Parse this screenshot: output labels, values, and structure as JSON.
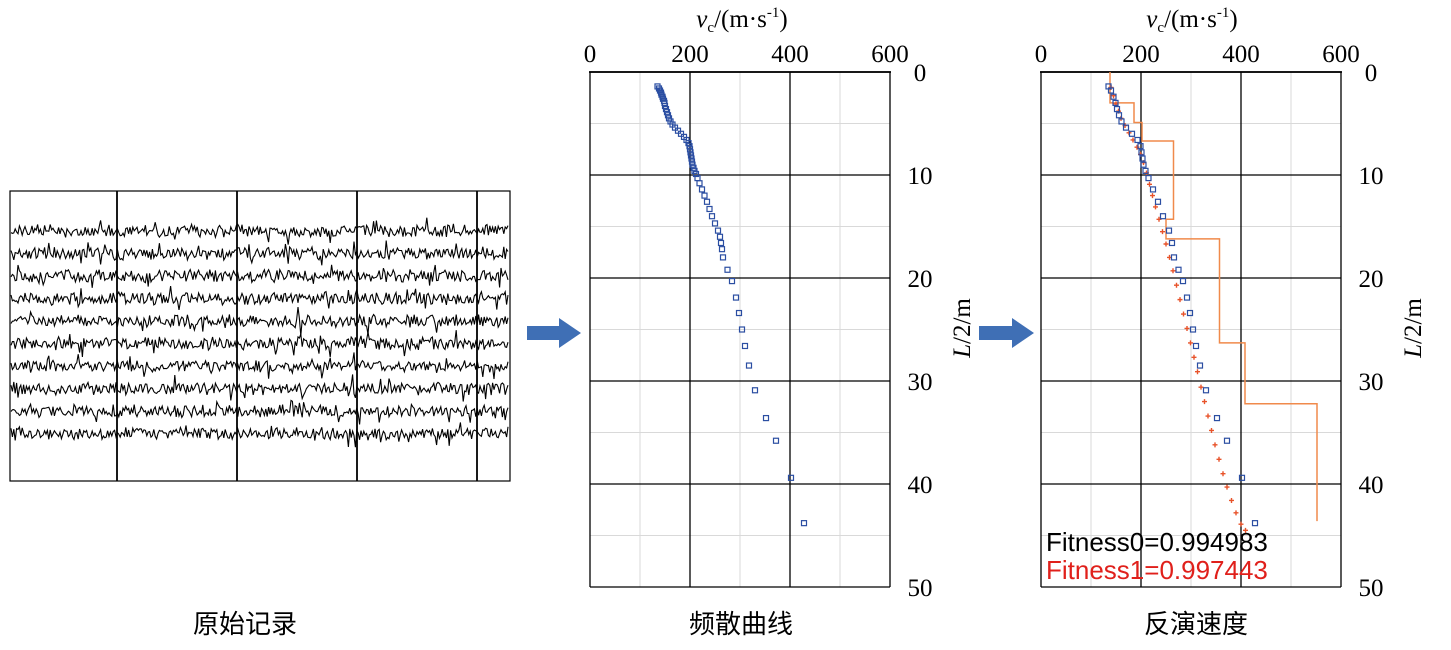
{
  "panels": {
    "raw": {
      "caption": "原始记录",
      "trace_count": 10,
      "segment_dividers": 4
    },
    "dispersion": {
      "caption": "频散曲线"
    },
    "inversion": {
      "caption": "反演速度",
      "fitness0": "Fitness0=0.994983",
      "fitness1": "Fitness1=0.997443"
    }
  },
  "axes": {
    "x_label_base": "v",
    "x_label_sub": "c",
    "x_label_mid": "/(m·s",
    "x_label_sup": "-1",
    "x_label_end": ")",
    "y_label_italic": "L",
    "y_label_rest": "/2/m"
  },
  "colors": {
    "dispersion": "#2b4ea2",
    "inverted": "#e8532a",
    "layer_model": "#f08a4b",
    "fitness0": "#000000",
    "fitness1": "#e0201b",
    "arrow": "#3f6fb5"
  },
  "chart_data": [
    {
      "type": "scatter",
      "name": "dispersion-curve",
      "x_axis": {
        "label": "vc/(m·s-1)",
        "range": [
          0,
          600
        ],
        "ticks": [
          0,
          200,
          400,
          600
        ],
        "position": "top"
      },
      "y_axis": {
        "label": "L/2/m",
        "range": [
          0,
          50
        ],
        "ticks": [
          0,
          10,
          20,
          30,
          40,
          50
        ],
        "position": "right",
        "inverted": true
      },
      "grid": true,
      "series": [
        {
          "values_xy": [
            [
              135,
              1.4
            ],
            [
              138,
              1.6
            ],
            [
              140,
              1.8
            ],
            [
              142,
              2.0
            ],
            [
              143,
              2.2
            ],
            [
              145,
              2.4
            ],
            [
              146,
              2.6
            ],
            [
              148,
              2.8
            ],
            [
              149,
              3.0
            ],
            [
              150,
              3.3
            ],
            [
              152,
              3.6
            ],
            [
              154,
              3.9
            ],
            [
              156,
              4.2
            ],
            [
              158,
              4.5
            ],
            [
              161,
              4.8
            ],
            [
              165,
              5.1
            ],
            [
              170,
              5.4
            ],
            [
              176,
              5.7
            ],
            [
              182,
              6.0
            ],
            [
              188,
              6.3
            ],
            [
              193,
              6.6
            ],
            [
              197,
              6.9
            ],
            [
              199,
              7.2
            ],
            [
              200,
              7.5
            ],
            [
              201,
              7.8
            ],
            [
              202,
              8.1
            ],
            [
              203,
              8.4
            ],
            [
              204,
              8.7
            ],
            [
              205,
              9.0
            ],
            [
              207,
              9.3
            ],
            [
              209,
              9.6
            ],
            [
              212,
              9.9
            ],
            [
              215,
              10.3
            ],
            [
              219,
              10.8
            ],
            [
              224,
              11.4
            ],
            [
              229,
              12.0
            ],
            [
              234,
              12.6
            ],
            [
              239,
              13.3
            ],
            [
              244,
              14.0
            ],
            [
              250,
              14.7
            ],
            [
              256,
              15.4
            ],
            [
              260,
              16.0
            ],
            [
              262,
              16.6
            ],
            [
              264,
              17.2
            ],
            [
              266,
              18.0
            ],
            [
              275,
              19.2
            ],
            [
              284,
              20.3
            ],
            [
              292,
              21.9
            ],
            [
              298,
              23.4
            ],
            [
              304,
              25.0
            ],
            [
              310,
              26.6
            ],
            [
              318,
              28.5
            ],
            [
              330,
              30.9
            ],
            [
              352,
              33.6
            ],
            [
              372,
              35.8
            ],
            [
              402,
              39.4
            ],
            [
              428,
              43.8
            ]
          ]
        }
      ]
    },
    {
      "type": "line",
      "name": "inversion-result",
      "x_axis": {
        "label": "vc/(m·s-1)",
        "range": [
          0,
          600
        ],
        "ticks": [
          0,
          200,
          400,
          600
        ],
        "position": "top"
      },
      "y_axis": {
        "label": "L/2/m",
        "range": [
          0,
          50
        ],
        "ticks": [
          0,
          10,
          20,
          30,
          40,
          50
        ],
        "position": "right",
        "inverted": true
      },
      "grid": true,
      "series": [
        {
          "kind": "scatter",
          "role": "observed",
          "values_xy": [
            [
              135,
              1.4
            ],
            [
              140,
              1.8
            ],
            [
              145,
              2.4
            ],
            [
              149,
              3.0
            ],
            [
              152,
              3.6
            ],
            [
              156,
              4.2
            ],
            [
              161,
              4.8
            ],
            [
              170,
              5.4
            ],
            [
              182,
              6.0
            ],
            [
              193,
              6.6
            ],
            [
              199,
              7.2
            ],
            [
              201,
              7.8
            ],
            [
              203,
              8.4
            ],
            [
              205,
              9.0
            ],
            [
              209,
              9.6
            ],
            [
              215,
              10.3
            ],
            [
              224,
              11.4
            ],
            [
              234,
              12.6
            ],
            [
              244,
              14.0
            ],
            [
              256,
              15.4
            ],
            [
              262,
              16.6
            ],
            [
              266,
              18.0
            ],
            [
              275,
              19.2
            ],
            [
              284,
              20.3
            ],
            [
              292,
              21.9
            ],
            [
              298,
              23.4
            ],
            [
              304,
              25.0
            ],
            [
              310,
              26.6
            ],
            [
              318,
              28.5
            ],
            [
              330,
              30.9
            ],
            [
              352,
              33.6
            ],
            [
              372,
              35.8
            ],
            [
              402,
              39.4
            ],
            [
              428,
              43.8
            ]
          ]
        },
        {
          "kind": "plus",
          "role": "inverted",
          "values_xy": [
            [
              140,
              1.5
            ],
            [
              145,
              2.3
            ],
            [
              150,
              3.1
            ],
            [
              155,
              3.8
            ],
            [
              160,
              4.5
            ],
            [
              168,
              5.2
            ],
            [
              176,
              5.9
            ],
            [
              184,
              6.6
            ],
            [
              192,
              7.3
            ],
            [
              199,
              8.0
            ],
            [
              205,
              8.8
            ],
            [
              211,
              9.8
            ],
            [
              217,
              10.9
            ],
            [
              223,
              12.0
            ],
            [
              229,
              13.1
            ],
            [
              236,
              14.3
            ],
            [
              243,
              15.5
            ],
            [
              250,
              16.7
            ],
            [
              257,
              18.0
            ],
            [
              264,
              19.3
            ],
            [
              271,
              20.7
            ],
            [
              278,
              22.1
            ],
            [
              285,
              23.5
            ],
            [
              292,
              24.9
            ],
            [
              299,
              26.3
            ],
            [
              306,
              27.7
            ],
            [
              313,
              29.1
            ],
            [
              320,
              30.6
            ],
            [
              327,
              32.0
            ],
            [
              334,
              33.4
            ],
            [
              341,
              34.8
            ],
            [
              348,
              36.2
            ],
            [
              356,
              37.6
            ],
            [
              364,
              39.0
            ],
            [
              372,
              40.3
            ],
            [
              381,
              41.6
            ],
            [
              390,
              42.8
            ],
            [
              400,
              43.9
            ],
            [
              409,
              44.5
            ]
          ]
        },
        {
          "kind": "step",
          "role": "layer-model",
          "values_xy": [
            [
              138,
              0
            ],
            [
              138,
              3.0
            ],
            [
              186,
              3.0
            ],
            [
              186,
              4.9
            ],
            [
              202,
              4.9
            ],
            [
              202,
              6.7
            ],
            [
              265,
              6.7
            ],
            [
              265,
              14.3
            ],
            [
              250,
              14.3
            ],
            [
              250,
              16.2
            ],
            [
              357,
              16.2
            ],
            [
              357,
              26.3
            ],
            [
              408,
              26.3
            ],
            [
              408,
              32.2
            ],
            [
              552,
              32.2
            ],
            [
              552,
              43.6
            ]
          ]
        }
      ]
    }
  ]
}
